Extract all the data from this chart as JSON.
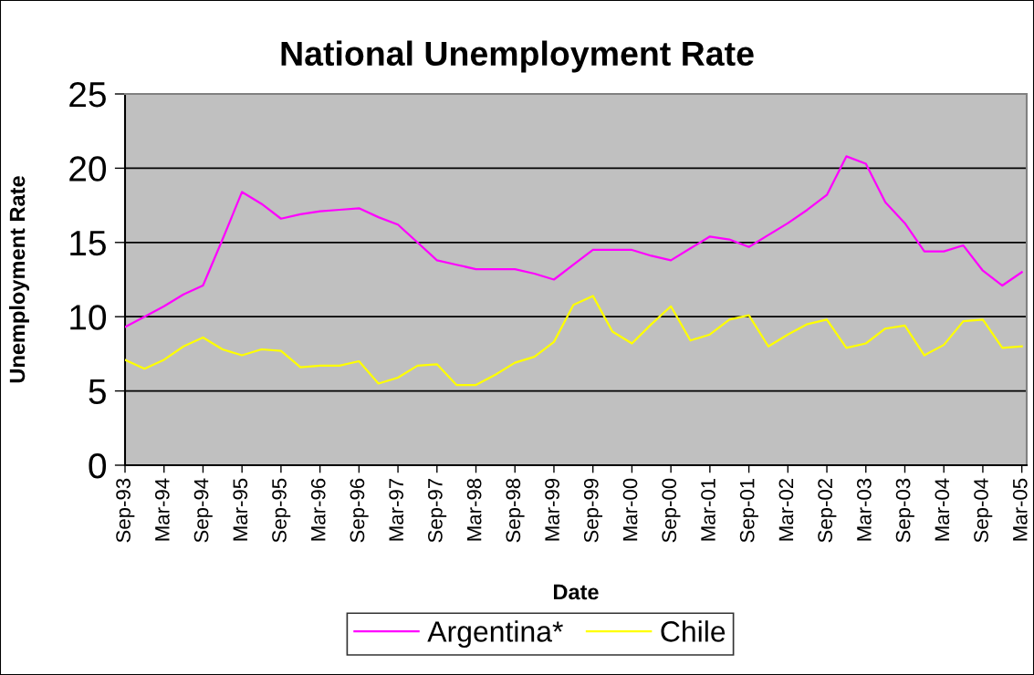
{
  "chart_data": {
    "type": "line",
    "title": "National Unemployment Rate",
    "xlabel": "Date",
    "ylabel": "Unemployment Rate",
    "categories": [
      "Sep-93",
      null,
      "Mar-94",
      null,
      "Sep-94",
      null,
      "Mar-95",
      null,
      "Sep-95",
      null,
      "Mar-96",
      null,
      "Sep-96",
      null,
      "Mar-97",
      null,
      "Sep-97",
      null,
      "Mar-98",
      null,
      "Sep-98",
      null,
      "Mar-99",
      null,
      "Sep-99",
      null,
      "Mar-00",
      null,
      "Sep-00",
      null,
      "Mar-01",
      null,
      "Sep-01",
      null,
      "Mar-02",
      null,
      "Sep-02",
      null,
      "Mar-03",
      null,
      "Sep-03",
      null,
      "Mar-04",
      null,
      "Sep-04",
      null,
      "Mar-05"
    ],
    "series": [
      {
        "name": "Argentina*",
        "color": "#ff00ff",
        "values": [
          9.3,
          10.0,
          10.7,
          11.5,
          12.1,
          15.2,
          18.4,
          17.6,
          16.6,
          16.9,
          17.1,
          17.2,
          17.3,
          16.7,
          16.2,
          15.0,
          13.8,
          13.5,
          13.2,
          13.2,
          13.2,
          12.9,
          12.5,
          13.5,
          14.5,
          14.5,
          14.5,
          14.1,
          13.8,
          14.6,
          15.4,
          15.2,
          14.7,
          15.5,
          16.3,
          17.2,
          18.2,
          20.8,
          20.3,
          17.7,
          16.3,
          14.4,
          14.4,
          14.8,
          13.1,
          12.1,
          13.0
        ]
      },
      {
        "name": "Chile",
        "color": "#ffff00",
        "values": [
          7.1,
          6.5,
          7.1,
          8.0,
          8.6,
          7.8,
          7.4,
          7.8,
          7.7,
          6.6,
          6.7,
          6.7,
          7.0,
          5.5,
          5.9,
          6.7,
          6.8,
          5.4,
          5.4,
          6.1,
          6.9,
          7.3,
          8.3,
          10.8,
          11.4,
          9.0,
          8.2,
          9.5,
          10.7,
          8.4,
          8.8,
          9.8,
          10.1,
          8.0,
          8.8,
          9.5,
          9.8,
          7.9,
          8.2,
          9.2,
          9.4,
          7.4,
          8.1,
          9.7,
          9.8,
          7.9,
          8.0
        ]
      }
    ],
    "ylim": [
      0,
      25
    ],
    "yticks": [
      0,
      5,
      10,
      15,
      20,
      25
    ],
    "grid": "y",
    "legend": "bottom",
    "marker": "none",
    "line_style": "solid"
  }
}
